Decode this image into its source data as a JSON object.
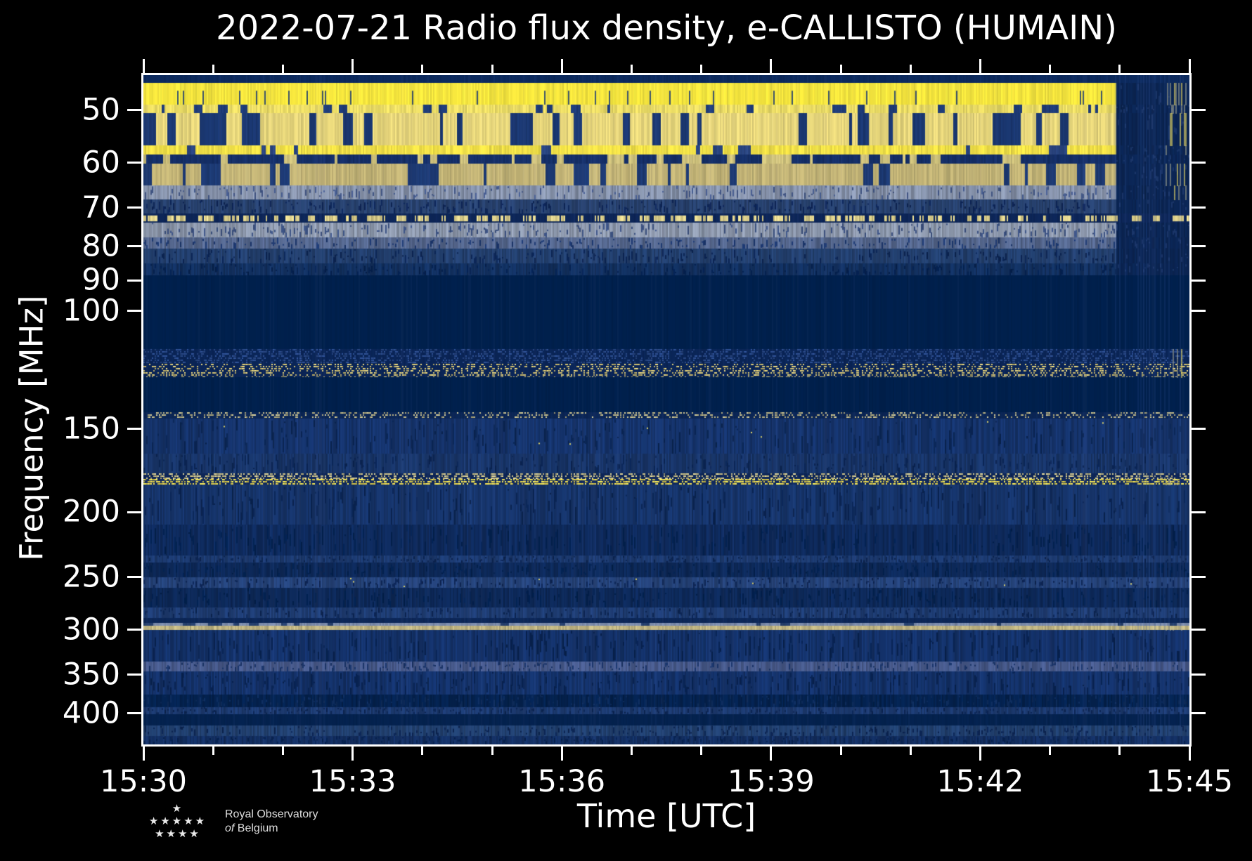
{
  "figure": {
    "background": "#000000",
    "frame_color": "#ffffff",
    "text_color": "#ffffff"
  },
  "chart_data": {
    "type": "heatmap",
    "subtype": "radio-spectrogram",
    "title": "2022-07-21 Radio flux density, e-CALLISTO (HUMAIN)",
    "xlabel": "Time [UTC]",
    "ylabel": "Frequency [MHz]",
    "colormap": "cividis",
    "x_axis": {
      "start": "15:30",
      "end": "15:45",
      "major_tick_labels": [
        "15:30",
        "15:33",
        "15:36",
        "15:39",
        "15:42",
        "15:45"
      ],
      "major_tick_minutes": [
        0,
        3,
        6,
        9,
        12,
        15
      ],
      "minor_tick_every_minutes": 1,
      "total_minutes": 15
    },
    "y_axis": {
      "scale": "log",
      "unit": "MHz",
      "min": 44.35,
      "max": 445.1,
      "tick_labels": [
        "50",
        "60",
        "70",
        "80",
        "90",
        "100",
        "150",
        "200",
        "250",
        "300",
        "350",
        "400"
      ],
      "tick_values": [
        50,
        60,
        70,
        80,
        90,
        100,
        150,
        200,
        250,
        300,
        350,
        400
      ]
    },
    "data_end_time": "15:43:56",
    "data_end_fraction": 0.929,
    "bands": [
      {
        "f0": 44.35,
        "f1": 45.6,
        "mode": "solid",
        "base": "#0c2a5e",
        "cut": false
      },
      {
        "f0": 45.6,
        "f1": 49.2,
        "mode": "bright",
        "base": "#f8e83e",
        "alt": "#c9b95e",
        "cut": true,
        "streak": true
      },
      {
        "f0": 49.2,
        "f1": 50.6,
        "mode": "striped",
        "base": "#eedf66",
        "alt": "#1f3c78",
        "p": 0.3,
        "cut": true,
        "streak": true
      },
      {
        "f0": 50.6,
        "f1": 56.6,
        "mode": "striped",
        "base": "#e9d87c",
        "alt": "#1b3872",
        "p": 0.4,
        "cut": true,
        "streak": true
      },
      {
        "f0": 56.6,
        "f1": 58.3,
        "mode": "striped",
        "base": "#f3e247",
        "alt": "#2a4580",
        "p": 0.15,
        "cut": true,
        "streak": true
      },
      {
        "f0": 58.3,
        "f1": 60.2,
        "mode": "striped",
        "base": "#152f68",
        "alt": "#cfc27c",
        "p": 0.3,
        "cut": true
      },
      {
        "f0": 60.2,
        "f1": 65.0,
        "mode": "striped",
        "base": "#c4b577",
        "alt": "#1d3a74",
        "p": 0.4,
        "cut": true,
        "streak": true
      },
      {
        "f0": 65.0,
        "f1": 68.2,
        "mode": "texture",
        "base": "#8793ab",
        "alt": "#44598a",
        "cut": true,
        "streak": true
      },
      {
        "f0": 68.2,
        "f1": 71.6,
        "mode": "texture",
        "base": "#28426f",
        "alt": "#0e2658",
        "cut": true
      },
      {
        "f0": 71.6,
        "f1": 73.9,
        "mode": "dash",
        "base": "#0d2658",
        "alt": "#dccf8a",
        "p": 0.5,
        "cut": false
      },
      {
        "f0": 73.9,
        "f1": 77.6,
        "mode": "texture",
        "base": "#8e99ad",
        "alt": "#3c5282",
        "cut": true
      },
      {
        "f0": 77.6,
        "f1": 80.8,
        "mode": "texture",
        "base": "#56688f",
        "alt": "#1c3870",
        "cut": true
      },
      {
        "f0": 80.8,
        "f1": 84.9,
        "mode": "texture",
        "base": "#23406f",
        "alt": "#0c2554",
        "cut": true
      },
      {
        "f0": 84.9,
        "f1": 88.4,
        "mode": "texture",
        "base": "#12305f",
        "alt": "#052150",
        "cut": true
      },
      {
        "f0": 88.4,
        "f1": 114.0,
        "mode": "solid",
        "base": "#00204d",
        "cut": false
      },
      {
        "f0": 114.0,
        "f1": 125.6,
        "mode": "speckle2",
        "base": "#0a2557",
        "dotA": "#2c4c8c",
        "dotB": "#dcca76",
        "p": 0.35,
        "cut": false,
        "streak": true
      },
      {
        "f0": 125.6,
        "f1": 142.0,
        "mode": "solid",
        "base": "#00204d",
        "cut": false
      },
      {
        "f0": 142.0,
        "f1": 145.0,
        "mode": "speckle",
        "base": "#0b2656",
        "dotA": "#c9c08c",
        "p": 0.3,
        "cut": false
      },
      {
        "f0": 145.0,
        "f1": 163.7,
        "mode": "texture",
        "base": "#15336b",
        "alt": "#0a2553",
        "sparkle": 0.012,
        "cut": false
      },
      {
        "f0": 163.7,
        "f1": 175.1,
        "mode": "texture",
        "base": "#183569",
        "alt": "#0b2554",
        "cut": false
      },
      {
        "f0": 175.1,
        "f1": 178.5,
        "mode": "speckle",
        "base": "#0d2658",
        "dotA": "#d5c98c",
        "p": 0.45,
        "cut": false
      },
      {
        "f0": 178.5,
        "f1": 182.0,
        "mode": "speckle",
        "base": "#112a5e",
        "dotA": "#f0dd52",
        "p": 0.55,
        "cut": false,
        "streak": true
      },
      {
        "f0": 182.0,
        "f1": 208.7,
        "mode": "texture",
        "base": "#16346a",
        "alt": "#0a2452",
        "cut": false
      },
      {
        "f0": 208.7,
        "f1": 232.2,
        "mode": "texture",
        "base": "#0e2a5c",
        "alt": "#03214f",
        "cut": false
      },
      {
        "f0": 232.2,
        "f1": 237.9,
        "mode": "texture",
        "base": "#1c3a70",
        "alt": "#0c2553",
        "cut": false
      },
      {
        "f0": 237.9,
        "f1": 250.4,
        "mode": "texture",
        "base": "#0d2959",
        "alt": "#03214e",
        "cut": false
      },
      {
        "f0": 250.4,
        "f1": 259.7,
        "mode": "texture",
        "base": "#25437a",
        "alt": "#0d2554",
        "sparkle": 0.008,
        "cut": false
      },
      {
        "f0": 259.7,
        "f1": 277.9,
        "mode": "texture",
        "base": "#0d2959",
        "alt": "#02204d",
        "cut": false
      },
      {
        "f0": 277.9,
        "f1": 288.1,
        "mode": "texture",
        "base": "#1e3c72",
        "alt": "#0c2553",
        "cut": false
      },
      {
        "f0": 288.1,
        "f1": 293.1,
        "mode": "solid",
        "base": "#0c2758",
        "cut": false
      },
      {
        "f0": 293.1,
        "f1": 295.9,
        "mode": "striped",
        "base": "#7c8cac",
        "alt": "#27416f",
        "p": 0.25,
        "cut": false
      },
      {
        "f0": 295.9,
        "f1": 300.3,
        "mode": "line",
        "base": "#c6ba85",
        "cut": false,
        "streak": true
      },
      {
        "f0": 300.3,
        "f1": 334.7,
        "mode": "texture",
        "base": "#14326a",
        "alt": "#082250",
        "cut": false
      },
      {
        "f0": 334.7,
        "f1": 346.2,
        "mode": "texture",
        "base": "#47598a",
        "alt": "#1a3468",
        "cut": false
      },
      {
        "f0": 346.2,
        "f1": 375.7,
        "mode": "texture",
        "base": "#14326a",
        "alt": "#082250",
        "cut": false
      },
      {
        "f0": 375.7,
        "f1": 392.4,
        "mode": "texture",
        "base": "#04224f",
        "alt": "#0e2c5c",
        "cut": false
      },
      {
        "f0": 392.4,
        "f1": 402.0,
        "mode": "texture",
        "base": "#1c3a70",
        "alt": "#0c2553",
        "cut": false
      },
      {
        "f0": 402.0,
        "f1": 417.9,
        "mode": "solid",
        "base": "#04224f",
        "cut": false
      },
      {
        "f0": 417.9,
        "f1": 432.4,
        "mode": "texture",
        "base": "#21406f",
        "alt": "#0c2553",
        "cut": false
      },
      {
        "f0": 432.4,
        "f1": 445.1,
        "mode": "texture",
        "base": "#132f62",
        "alt": "#072250",
        "cut": false
      }
    ]
  },
  "logo": {
    "star_rows": [
      "★",
      "★★★★★",
      "★★★★"
    ],
    "line1": "Royal Observatory",
    "line2_italic": "of",
    "line2_rest": "Belgium"
  }
}
